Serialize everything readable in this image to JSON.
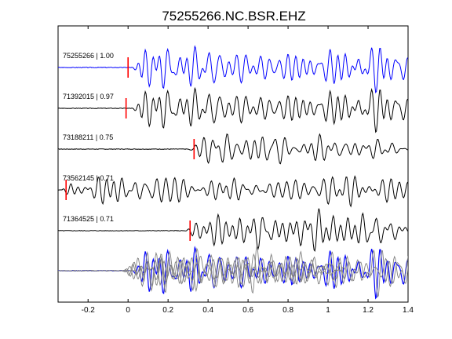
{
  "chart_data": {
    "type": "line",
    "title": "75255266.NC.BSR.EHZ",
    "xlabel": "",
    "ylabel": "",
    "xlim": [
      -0.35,
      1.4
    ],
    "x_ticks": [
      -0.2,
      0,
      0.2,
      0.4,
      0.6,
      0.8,
      1,
      1.2,
      1.4
    ],
    "x_tick_labels": [
      "-0.2",
      "0",
      "0.2",
      "0.4",
      "0.6",
      "0.8",
      "1",
      "1.2",
      "1.4"
    ],
    "grid": false,
    "colors": {
      "reference": "#0000ff",
      "other": "#000000",
      "pick": "#ff0000",
      "overlay_other": "#808080"
    },
    "traces": [
      {
        "event_id": "75255266",
        "correlation": "1.00",
        "label": "75255266 | 1.00",
        "pick_time": 0.0,
        "onset_time": 0.02,
        "color": "#0000ff",
        "amplitude": 1.0,
        "seed": 3
      },
      {
        "event_id": "71392015",
        "correlation": "0.97",
        "label": "71392015 | 0.97",
        "pick_time": -0.01,
        "onset_time": 0.02,
        "color": "#000000",
        "amplitude": 0.95,
        "seed": 3
      },
      {
        "event_id": "73188211",
        "correlation": "0.75",
        "label": "73188211 | 0.75",
        "pick_time": 0.33,
        "onset_time": 0.3,
        "color": "#000000",
        "amplitude": 0.85,
        "seed": 7
      },
      {
        "event_id": "73562145",
        "correlation": "0.71",
        "label": "73562145 | 0.71",
        "pick_time": -0.31,
        "onset_time": -0.33,
        "color": "#000000",
        "amplitude": 0.75,
        "seed": 11
      },
      {
        "event_id": "71364525",
        "correlation": "0.71",
        "label": "71364525 | 0.71",
        "pick_time": 0.31,
        "onset_time": 0.28,
        "color": "#000000",
        "amplitude": 0.9,
        "seed": 5
      }
    ]
  }
}
